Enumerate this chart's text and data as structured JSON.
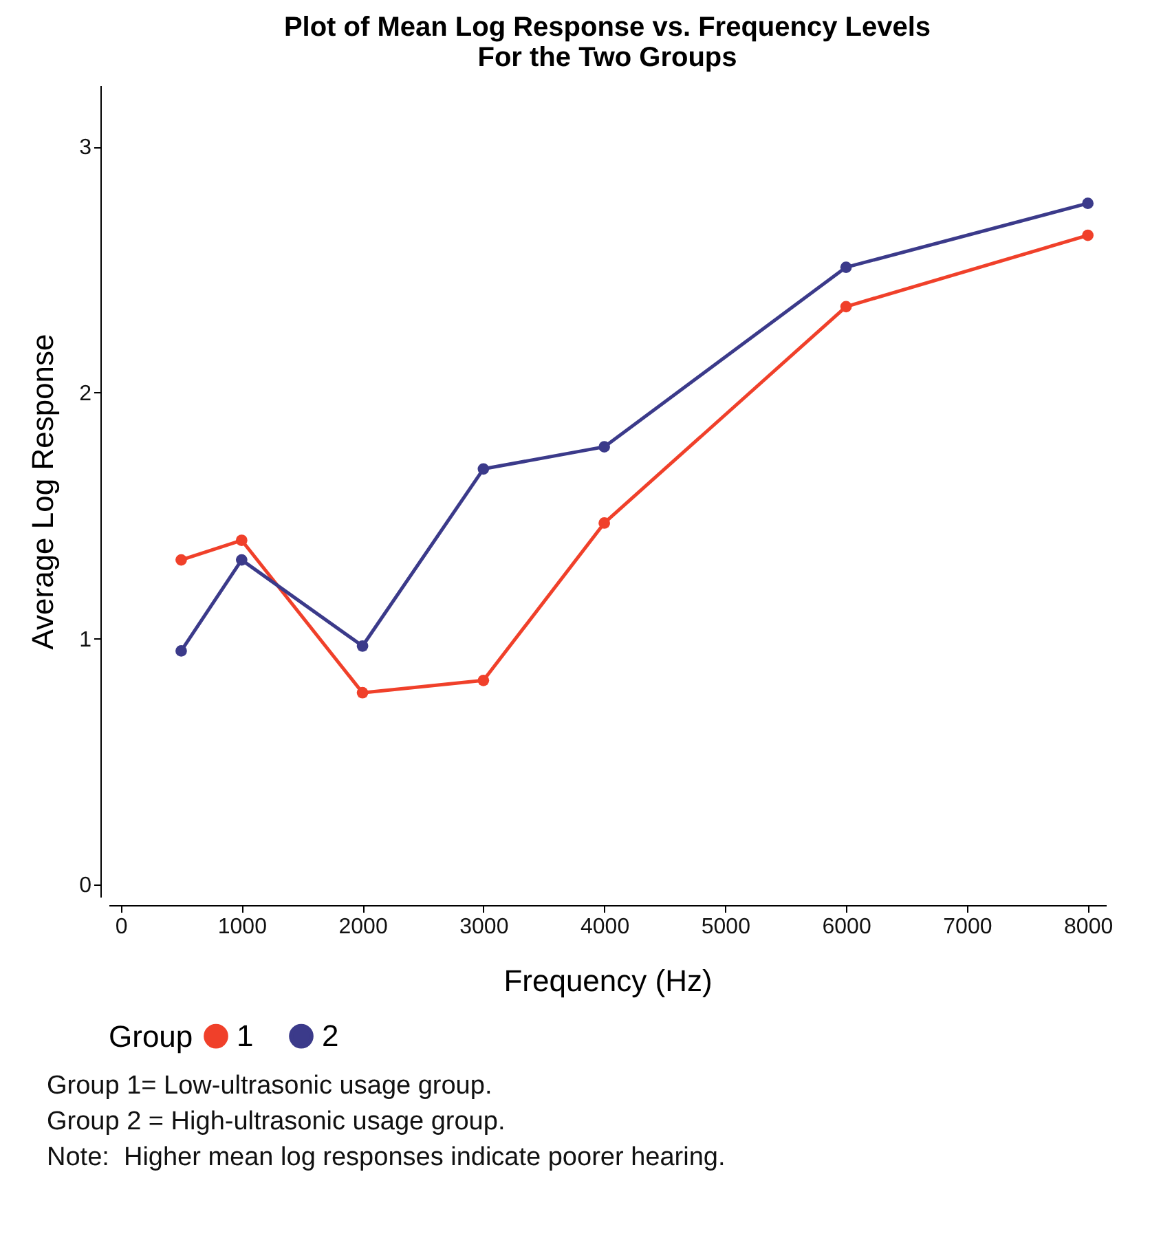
{
  "chart_data": {
    "type": "line",
    "title": [
      "Plot of Mean Log Response vs. Frequency Levels",
      "For the Two Groups"
    ],
    "xlabel": "Frequency (Hz)",
    "ylabel": "Average Log Response",
    "legend_title": "Group",
    "x": [
      500,
      1000,
      2000,
      3000,
      4000,
      6000,
      8000
    ],
    "series": [
      {
        "name": "1",
        "color": "#f0402a",
        "values": [
          1.32,
          1.4,
          0.78,
          0.83,
          1.47,
          2.35,
          2.64
        ]
      },
      {
        "name": "2",
        "color": "#3b3a8a",
        "values": [
          0.95,
          1.32,
          0.97,
          1.69,
          1.78,
          2.51,
          2.77
        ]
      }
    ],
    "xlim": [
      -100,
      8150
    ],
    "ylim": [
      -0.05,
      3.25
    ],
    "xticks": [
      0,
      1000,
      2000,
      3000,
      4000,
      5000,
      6000,
      7000,
      8000
    ],
    "yticks": [
      0,
      1,
      2,
      3
    ],
    "grid": false,
    "legend": "bottom",
    "marker": "circle",
    "line_style": "solid",
    "annotations": [
      "Group 1= Low-ultrasonic usage group.",
      "Group 2 = High-ultrasonic usage group.",
      "Note:  Higher mean log responses indicate poorer hearing."
    ]
  }
}
